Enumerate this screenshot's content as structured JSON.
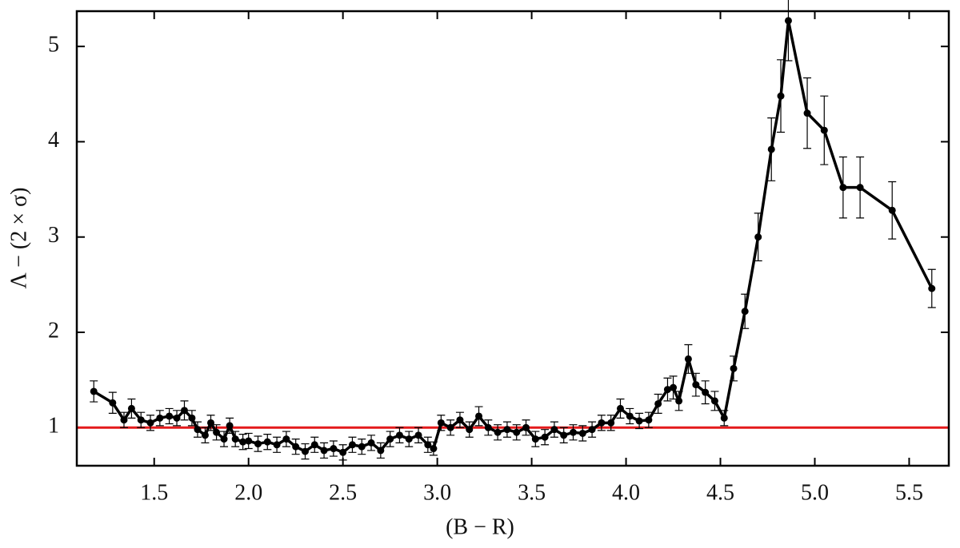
{
  "chart_data": {
    "type": "line",
    "xlabel": "(B − R)",
    "ylabel": "Λ − (2 × σ)",
    "x": [
      1.18,
      1.28,
      1.34,
      1.38,
      1.43,
      1.48,
      1.53,
      1.58,
      1.62,
      1.66,
      1.7,
      1.73,
      1.77,
      1.8,
      1.83,
      1.87,
      1.9,
      1.93,
      1.97,
      2.0,
      2.05,
      2.1,
      2.15,
      2.2,
      2.25,
      2.3,
      2.35,
      2.4,
      2.45,
      2.5,
      2.55,
      2.6,
      2.65,
      2.7,
      2.75,
      2.8,
      2.85,
      2.9,
      2.95,
      2.98,
      3.02,
      3.07,
      3.12,
      3.17,
      3.22,
      3.27,
      3.32,
      3.37,
      3.42,
      3.47,
      3.52,
      3.57,
      3.62,
      3.67,
      3.72,
      3.77,
      3.82,
      3.87,
      3.92,
      3.97,
      4.02,
      4.07,
      4.12,
      4.17,
      4.22,
      4.25,
      4.28,
      4.33,
      4.37,
      4.42,
      4.47,
      4.52,
      4.57,
      4.63,
      4.7,
      4.77,
      4.82,
      4.86,
      4.96,
      5.05,
      5.15,
      5.24,
      5.41,
      5.62
    ],
    "series": [
      {
        "color": "#000000",
        "values": [
          1.38,
          1.26,
          1.08,
          1.2,
          1.08,
          1.05,
          1.1,
          1.12,
          1.1,
          1.18,
          1.1,
          0.98,
          0.92,
          1.05,
          0.95,
          0.88,
          1.02,
          0.88,
          0.85,
          0.86,
          0.83,
          0.85,
          0.82,
          0.88,
          0.8,
          0.75,
          0.82,
          0.76,
          0.78,
          0.74,
          0.82,
          0.8,
          0.84,
          0.76,
          0.88,
          0.92,
          0.88,
          0.92,
          0.82,
          0.78,
          1.05,
          1.0,
          1.08,
          0.98,
          1.12,
          1.0,
          0.95,
          0.98,
          0.95,
          1.0,
          0.88,
          0.9,
          0.98,
          0.92,
          0.95,
          0.94,
          0.98,
          1.05,
          1.05,
          1.2,
          1.12,
          1.07,
          1.08,
          1.25,
          1.4,
          1.42,
          1.28,
          1.72,
          1.45,
          1.37,
          1.28,
          1.1,
          1.62,
          2.22,
          3.0,
          3.92,
          4.48,
          5.27,
          4.3,
          4.12,
          3.52,
          3.52,
          3.28,
          2.46
        ],
        "errors": [
          0.11,
          0.11,
          0.08,
          0.1,
          0.08,
          0.08,
          0.08,
          0.08,
          0.08,
          0.1,
          0.08,
          0.08,
          0.08,
          0.08,
          0.08,
          0.08,
          0.08,
          0.08,
          0.08,
          0.08,
          0.08,
          0.08,
          0.08,
          0.08,
          0.08,
          0.08,
          0.08,
          0.08,
          0.08,
          0.08,
          0.08,
          0.08,
          0.08,
          0.08,
          0.08,
          0.08,
          0.08,
          0.08,
          0.08,
          0.07,
          0.08,
          0.08,
          0.08,
          0.08,
          0.1,
          0.08,
          0.08,
          0.08,
          0.08,
          0.08,
          0.08,
          0.08,
          0.08,
          0.08,
          0.08,
          0.08,
          0.08,
          0.08,
          0.08,
          0.1,
          0.08,
          0.08,
          0.08,
          0.1,
          0.12,
          0.12,
          0.1,
          0.15,
          0.12,
          0.12,
          0.1,
          0.08,
          0.13,
          0.18,
          0.25,
          0.33,
          0.38,
          0.42,
          0.37,
          0.36,
          0.32,
          0.32,
          0.3,
          0.2
        ]
      }
    ],
    "hline": {
      "value": 1,
      "color": "#e41a1c"
    },
    "xlim": [
      1.09,
      5.71
    ],
    "ylim": [
      0.6,
      5.37
    ],
    "xticks": [
      1.5,
      {
        "value": 2,
        "label": "2.0"
      },
      2.5,
      {
        "value": 3,
        "label": "3.0"
      },
      3.5,
      {
        "value": 4,
        "label": "4.0"
      },
      4.5,
      {
        "value": 5,
        "label": "5.0"
      },
      5.5
    ],
    "yticks": [
      1,
      2,
      3,
      4,
      5
    ]
  }
}
